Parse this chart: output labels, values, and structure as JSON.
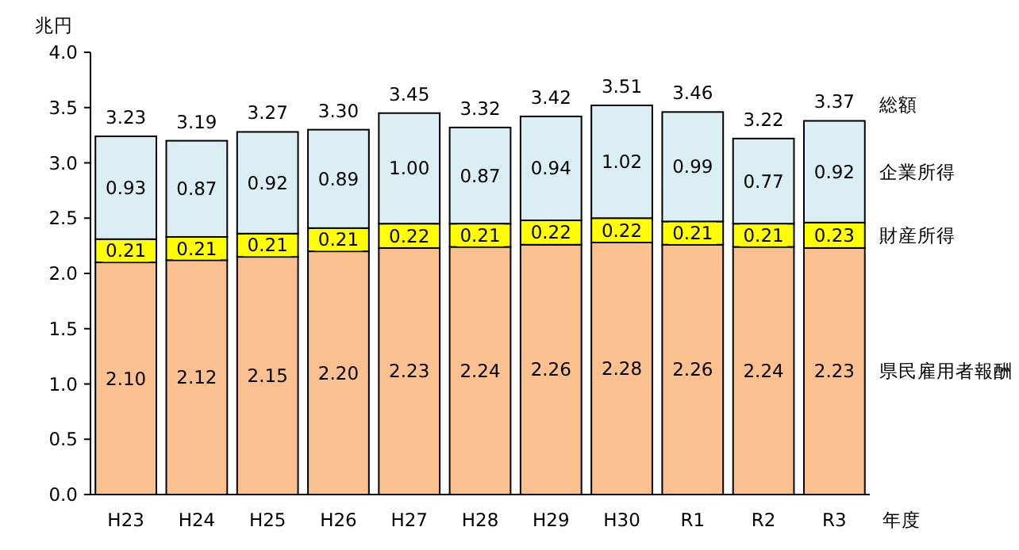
{
  "chart_data": {
    "type": "bar",
    "stacked": true,
    "ylabel": "兆円",
    "xlabel": "年度",
    "categories": [
      "H23",
      "H24",
      "H25",
      "H26",
      "H27",
      "H28",
      "H29",
      "H30",
      "R1",
      "R2",
      "R3"
    ],
    "series": [
      {
        "name": "県民雇用者報酬",
        "color": "#fac090",
        "values": [
          2.1,
          2.12,
          2.15,
          2.2,
          2.23,
          2.24,
          2.26,
          2.28,
          2.26,
          2.24,
          2.23
        ],
        "value_labels": [
          "2.10",
          "2.12",
          "2.15",
          "2.20",
          "2.23",
          "2.24",
          "2.26",
          "2.28",
          "2.26",
          "2.24",
          "2.23"
        ]
      },
      {
        "name": "財産所得",
        "color": "#ffff00",
        "values": [
          0.21,
          0.21,
          0.21,
          0.21,
          0.22,
          0.21,
          0.22,
          0.22,
          0.21,
          0.21,
          0.23
        ],
        "value_labels": [
          "0.21",
          "0.21",
          "0.21",
          "0.21",
          "0.22",
          "0.21",
          "0.22",
          "0.22",
          "0.21",
          "0.21",
          "0.23"
        ]
      },
      {
        "name": "企業所得",
        "color": "#daeef3",
        "values": [
          0.93,
          0.87,
          0.92,
          0.89,
          1.0,
          0.87,
          0.94,
          1.02,
          0.99,
          0.77,
          0.92
        ],
        "value_labels": [
          "0.93",
          "0.87",
          "0.92",
          "0.89",
          "1.00",
          "0.87",
          "0.94",
          "1.02",
          "0.99",
          "0.77",
          "0.92"
        ]
      }
    ],
    "totals": [
      "3.23",
      "3.19",
      "3.27",
      "3.30",
      "3.45",
      "3.32",
      "3.42",
      "3.51",
      "3.46",
      "3.22",
      "3.37"
    ],
    "annotations": [
      "総額"
    ],
    "ylim": [
      0,
      4
    ],
    "yticks": [
      {
        "value": 0,
        "label": "0.0"
      },
      {
        "value": 0.5,
        "label": "0.5"
      },
      {
        "value": 1,
        "label": "1.0"
      },
      {
        "value": 1.5,
        "label": "1.5"
      },
      {
        "value": 2,
        "label": "2.0"
      },
      {
        "value": 2.5,
        "label": "2.5"
      },
      {
        "value": 3,
        "label": "3.0"
      },
      {
        "value": 3.5,
        "label": "3.5"
      },
      {
        "value": 4,
        "label": "4.0"
      }
    ],
    "legend": false,
    "grid": false
  }
}
